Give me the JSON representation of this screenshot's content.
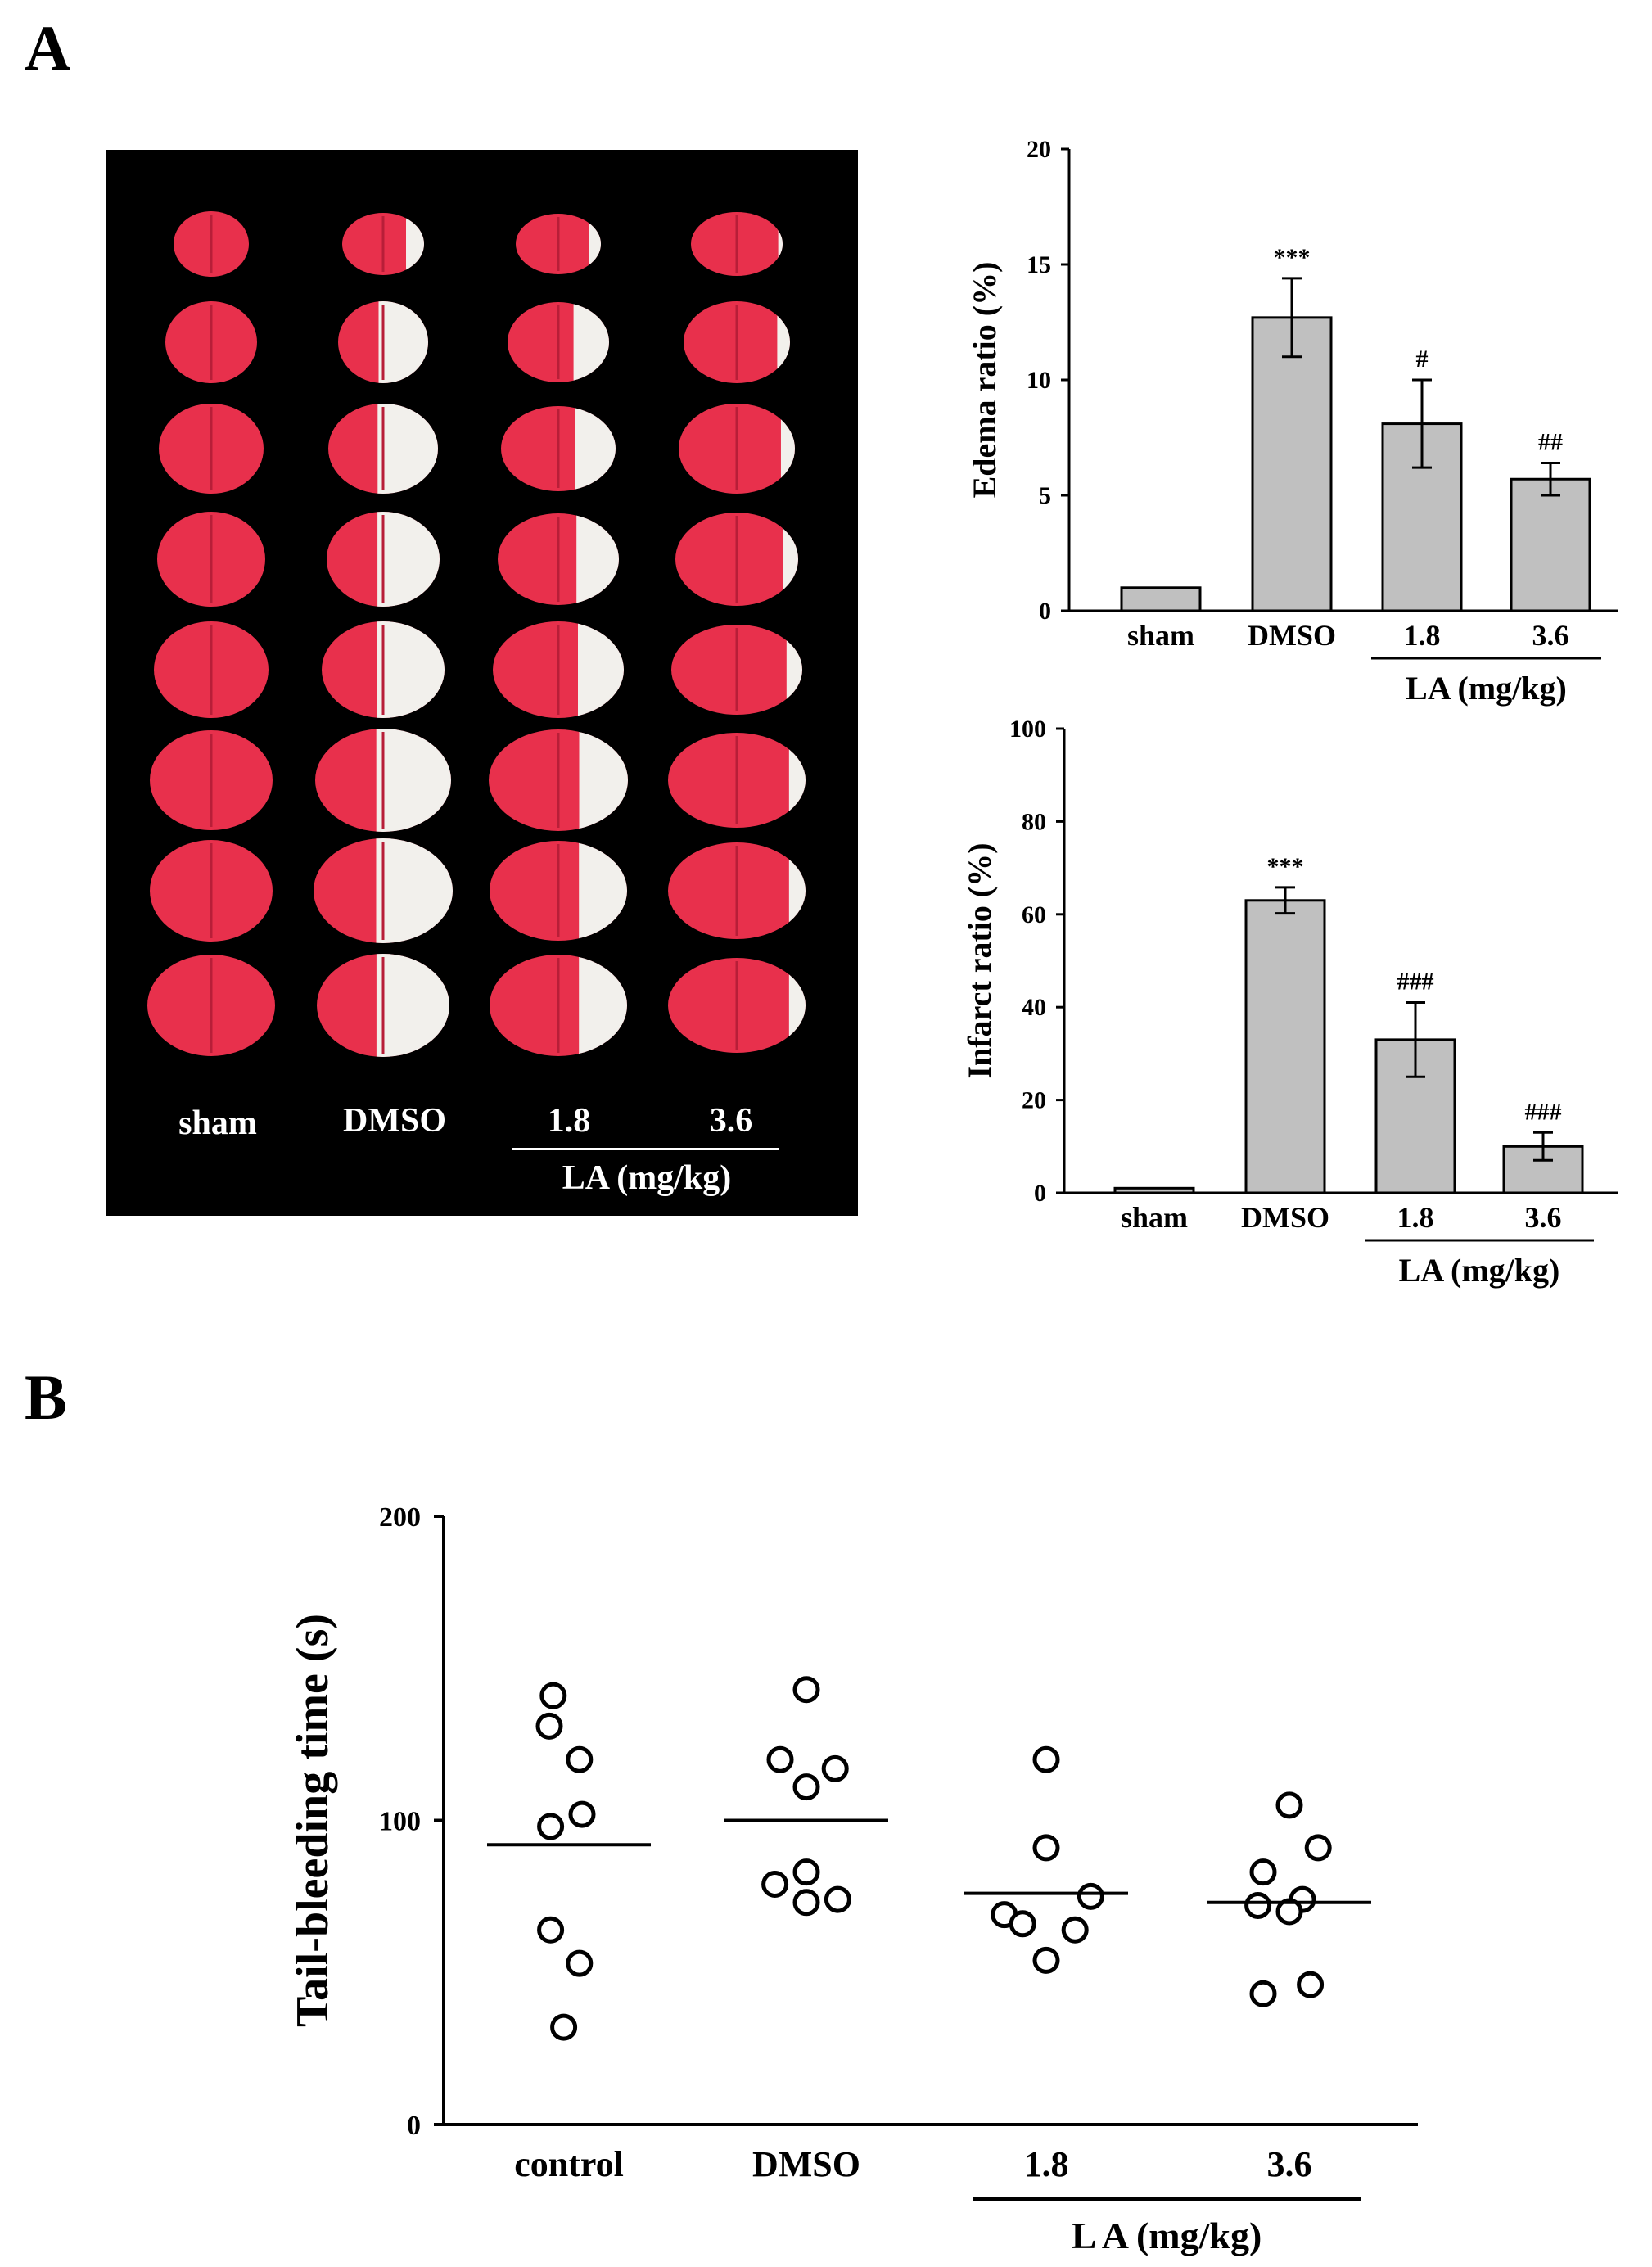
{
  "figure": {
    "panel_a_label": "A",
    "panel_b_label": "B"
  },
  "photo": {
    "groups": [
      "sham",
      "DMSO",
      "1.8",
      "3.6"
    ],
    "treatment_label": "LA (mg/kg)"
  },
  "colors": {
    "bar_fill": "#c0c0c0",
    "tissue_red": "#e8304c",
    "infarct_white": "#f2f0ec",
    "background_black": "#000000"
  },
  "chart_data": [
    {
      "type": "bar",
      "ylabel": "Edema ratio (%)",
      "categories": [
        "sham",
        "DMSO",
        "1.8",
        "3.6"
      ],
      "values": [
        1.0,
        12.7,
        8.1,
        5.7
      ],
      "errors": [
        0,
        1.7,
        1.9,
        0.7
      ],
      "significance": [
        "",
        "***",
        "#",
        "##"
      ],
      "yticks": [
        0,
        5,
        10,
        15,
        20
      ],
      "ylim": [
        0,
        20
      ],
      "group_label": "LA (mg/kg)"
    },
    {
      "type": "bar",
      "ylabel": "Infarct ratio (%)",
      "categories": [
        "sham",
        "DMSO",
        "1.8",
        "3.6"
      ],
      "values": [
        1.0,
        63.0,
        33.0,
        10.0
      ],
      "errors": [
        0,
        2.8,
        8.0,
        3.0
      ],
      "significance": [
        "",
        "***",
        "###",
        "###"
      ],
      "yticks": [
        0,
        20,
        40,
        60,
        80,
        100
      ],
      "ylim": [
        0,
        100
      ],
      "group_label": "LA (mg/kg)"
    },
    {
      "type": "scatter",
      "ylabel": "Tail-bleeding time (s)",
      "categories": [
        "control",
        "DMSO",
        "1.8",
        "3.6"
      ],
      "yticks": [
        0,
        100,
        200
      ],
      "ylim": [
        0,
        200
      ],
      "group_label": "L A (mg/kg)",
      "series": [
        {
          "category": "control",
          "mean": 92,
          "points": [
            [
              -0.12,
              141
            ],
            [
              -0.15,
              131
            ],
            [
              0.08,
              120
            ],
            [
              -0.14,
              98
            ],
            [
              0.1,
              102
            ],
            [
              -0.14,
              64
            ],
            [
              0.08,
              53
            ],
            [
              -0.04,
              32
            ]
          ]
        },
        {
          "category": "DMSO",
          "mean": 100,
          "points": [
            [
              0.0,
              143
            ],
            [
              -0.2,
              120
            ],
            [
              0.0,
              111
            ],
            [
              0.22,
              117
            ],
            [
              -0.24,
              79
            ],
            [
              0.0,
              83
            ],
            [
              0.0,
              73
            ],
            [
              0.24,
              74
            ]
          ]
        },
        {
          "category": "1.8",
          "mean": 76,
          "points": [
            [
              0.0,
              120
            ],
            [
              0.0,
              91
            ],
            [
              -0.32,
              69
            ],
            [
              -0.18,
              66
            ],
            [
              0.22,
              64
            ],
            [
              0.34,
              75
            ],
            [
              0.0,
              54
            ]
          ]
        },
        {
          "category": "3.6",
          "mean": 73,
          "points": [
            [
              0.0,
              105
            ],
            [
              -0.2,
              83
            ],
            [
              0.22,
              91
            ],
            [
              0.1,
              74
            ],
            [
              -0.24,
              72
            ],
            [
              0.0,
              70
            ],
            [
              -0.2,
              43
            ],
            [
              0.16,
              46
            ]
          ]
        }
      ]
    }
  ]
}
